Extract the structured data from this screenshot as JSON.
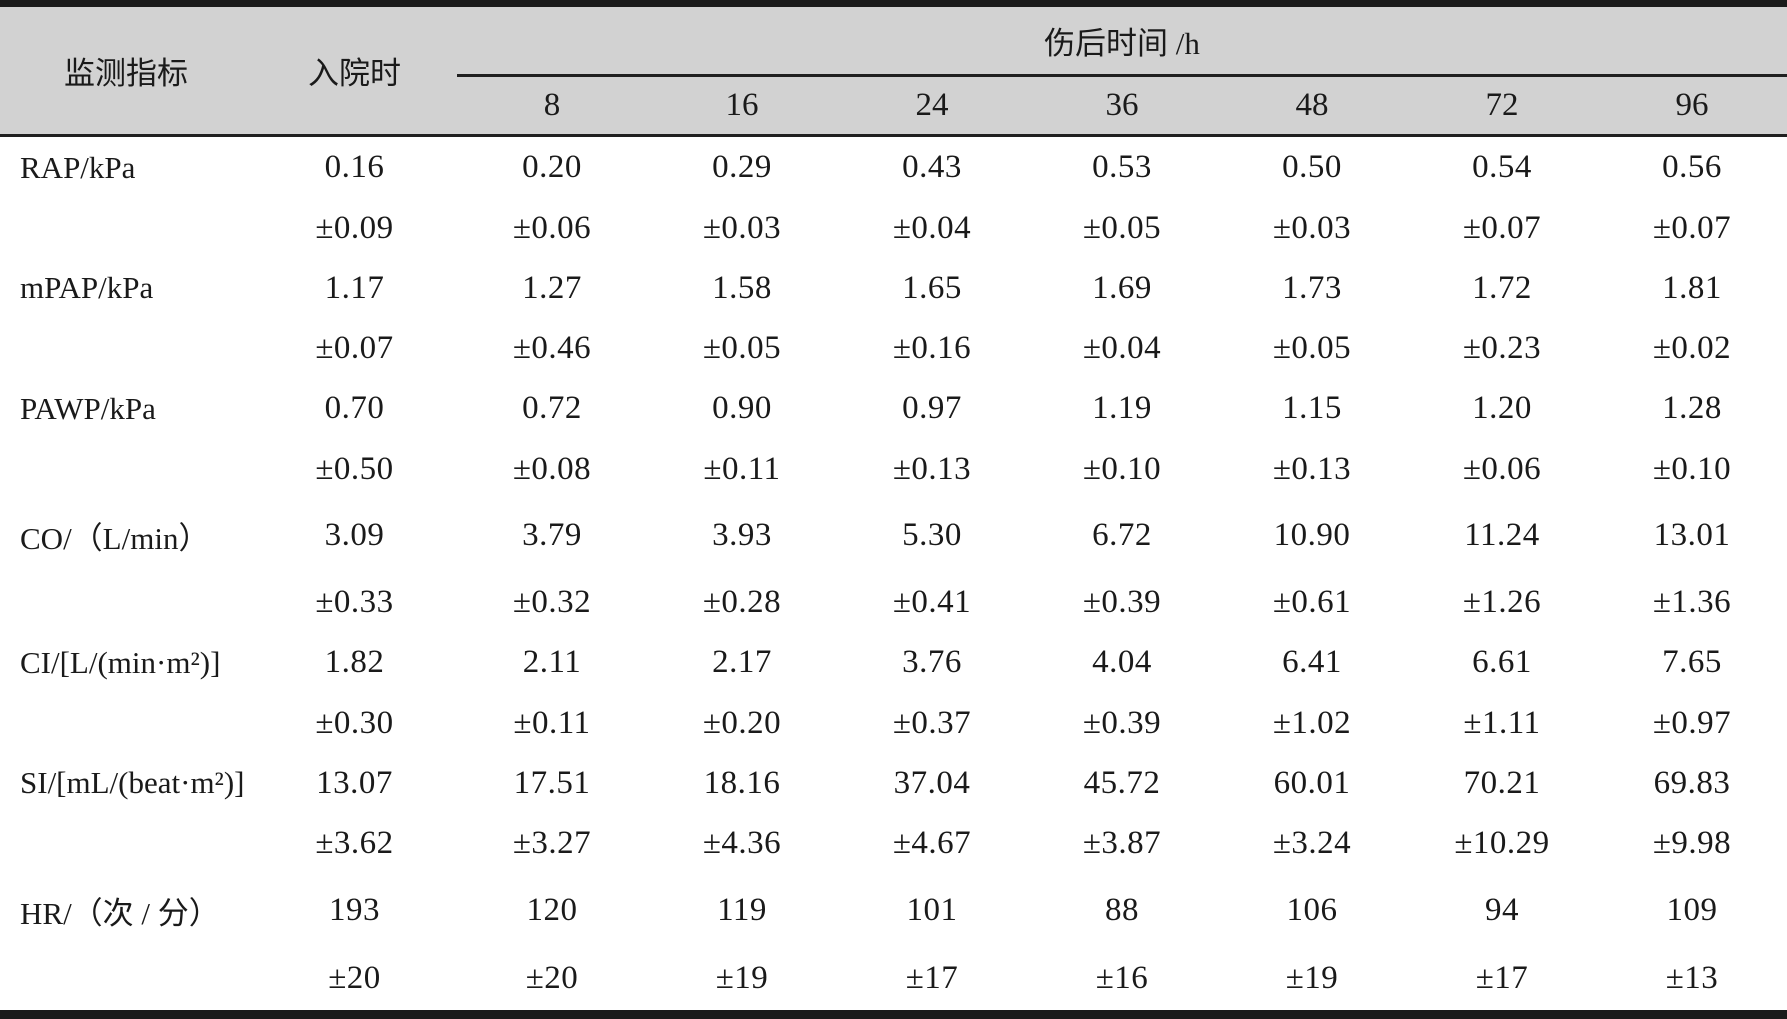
{
  "table": {
    "header": {
      "indicator": "监测指标",
      "admission": "入院时",
      "time_span": "伤后时间 /h",
      "times": [
        "8",
        "16",
        "24",
        "36",
        "48",
        "72",
        "96"
      ]
    },
    "rows": [
      {
        "label": "RAP/kPa",
        "values": [
          "0.16",
          "0.20",
          "0.29",
          "0.43",
          "0.53",
          "0.50",
          "0.54",
          "0.56"
        ],
        "sd": [
          "±0.09",
          "±0.06",
          "±0.03",
          "±0.04",
          "±0.05",
          "±0.03",
          "±0.07",
          "±0.07"
        ]
      },
      {
        "label": "mPAP/kPa",
        "values": [
          "1.17",
          "1.27",
          "1.58",
          "1.65",
          "1.69",
          "1.73",
          "1.72",
          "1.81"
        ],
        "sd": [
          "±0.07",
          "±0.46",
          "±0.05",
          "±0.16",
          "±0.04",
          "±0.05",
          "±0.23",
          "±0.02"
        ]
      },
      {
        "label": "PAWP/kPa",
        "values": [
          "0.70",
          "0.72",
          "0.90",
          "0.97",
          "1.19",
          "1.15",
          "1.20",
          "1.28"
        ],
        "sd": [
          "±0.50",
          "±0.08",
          "±0.11",
          "±0.13",
          "±0.10",
          "±0.13",
          "±0.06",
          "±0.10"
        ]
      },
      {
        "label": "CO/（L/min）",
        "values": [
          "3.09",
          "3.79",
          "3.93",
          "5.30",
          "6.72",
          "10.90",
          "11.24",
          "13.01"
        ],
        "sd": [
          "±0.33",
          "±0.32",
          "±0.28",
          "±0.41",
          "±0.39",
          "±0.61",
          "±1.26",
          "±1.36"
        ]
      },
      {
        "label": "CI/[L/(min·m²)]",
        "values": [
          "1.82",
          "2.11",
          "2.17",
          "3.76",
          "4.04",
          "6.41",
          "6.61",
          "7.65"
        ],
        "sd": [
          "±0.30",
          "±0.11",
          "±0.20",
          "±0.37",
          "±0.39",
          "±1.02",
          "±1.11",
          "±0.97"
        ]
      },
      {
        "label": "SI/[mL/(beat·m²)]",
        "values": [
          "13.07",
          "17.51",
          "18.16",
          "37.04",
          "45.72",
          "60.01",
          "70.21",
          "69.83"
        ],
        "sd": [
          "±3.62",
          "±3.27",
          "±4.36",
          "±4.67",
          "±3.87",
          "±3.24",
          "±10.29",
          "±9.98"
        ]
      },
      {
        "label": "HR/（次 / 分）",
        "values": [
          "193",
          "120",
          "119",
          "101",
          "88",
          "106",
          "94",
          "109"
        ],
        "sd": [
          "±20",
          "±20",
          "±19",
          "±17",
          "±16",
          "±19",
          "±17",
          "±13"
        ]
      }
    ]
  },
  "chart_data": {
    "type": "table",
    "title": "",
    "columns": [
      "监测指标",
      "入院时",
      "8",
      "16",
      "24",
      "36",
      "48",
      "72",
      "96"
    ],
    "column_group_label": "伤后时间 /h",
    "series": [
      {
        "name": "RAP/kPa",
        "mean": [
          0.16,
          0.2,
          0.29,
          0.43,
          0.53,
          0.5,
          0.54,
          0.56
        ],
        "sd": [
          0.09,
          0.06,
          0.03,
          0.04,
          0.05,
          0.03,
          0.07,
          0.07
        ]
      },
      {
        "name": "mPAP/kPa",
        "mean": [
          1.17,
          1.27,
          1.58,
          1.65,
          1.69,
          1.73,
          1.72,
          1.81
        ],
        "sd": [
          0.07,
          0.46,
          0.05,
          0.16,
          0.04,
          0.05,
          0.23,
          0.02
        ]
      },
      {
        "name": "PAWP/kPa",
        "mean": [
          0.7,
          0.72,
          0.9,
          0.97,
          1.19,
          1.15,
          1.2,
          1.28
        ],
        "sd": [
          0.5,
          0.08,
          0.11,
          0.13,
          0.1,
          0.13,
          0.06,
          0.1
        ]
      },
      {
        "name": "CO/(L/min)",
        "mean": [
          3.09,
          3.79,
          3.93,
          5.3,
          6.72,
          10.9,
          11.24,
          13.01
        ],
        "sd": [
          0.33,
          0.32,
          0.28,
          0.41,
          0.39,
          0.61,
          1.26,
          1.36
        ]
      },
      {
        "name": "CI/[L/(min·m²)]",
        "mean": [
          1.82,
          2.11,
          2.17,
          3.76,
          4.04,
          6.41,
          6.61,
          7.65
        ],
        "sd": [
          0.3,
          0.11,
          0.2,
          0.37,
          0.39,
          1.02,
          1.11,
          0.97
        ]
      },
      {
        "name": "SI/[mL/(beat·m²)]",
        "mean": [
          13.07,
          17.51,
          18.16,
          37.04,
          45.72,
          60.01,
          70.21,
          69.83
        ],
        "sd": [
          3.62,
          3.27,
          4.36,
          4.67,
          3.87,
          3.24,
          10.29,
          9.98
        ]
      },
      {
        "name": "HR/(次/分)",
        "mean": [
          193,
          120,
          119,
          101,
          88,
          106,
          94,
          109
        ],
        "sd": [
          20,
          20,
          19,
          17,
          16,
          19,
          17,
          13
        ]
      }
    ]
  }
}
